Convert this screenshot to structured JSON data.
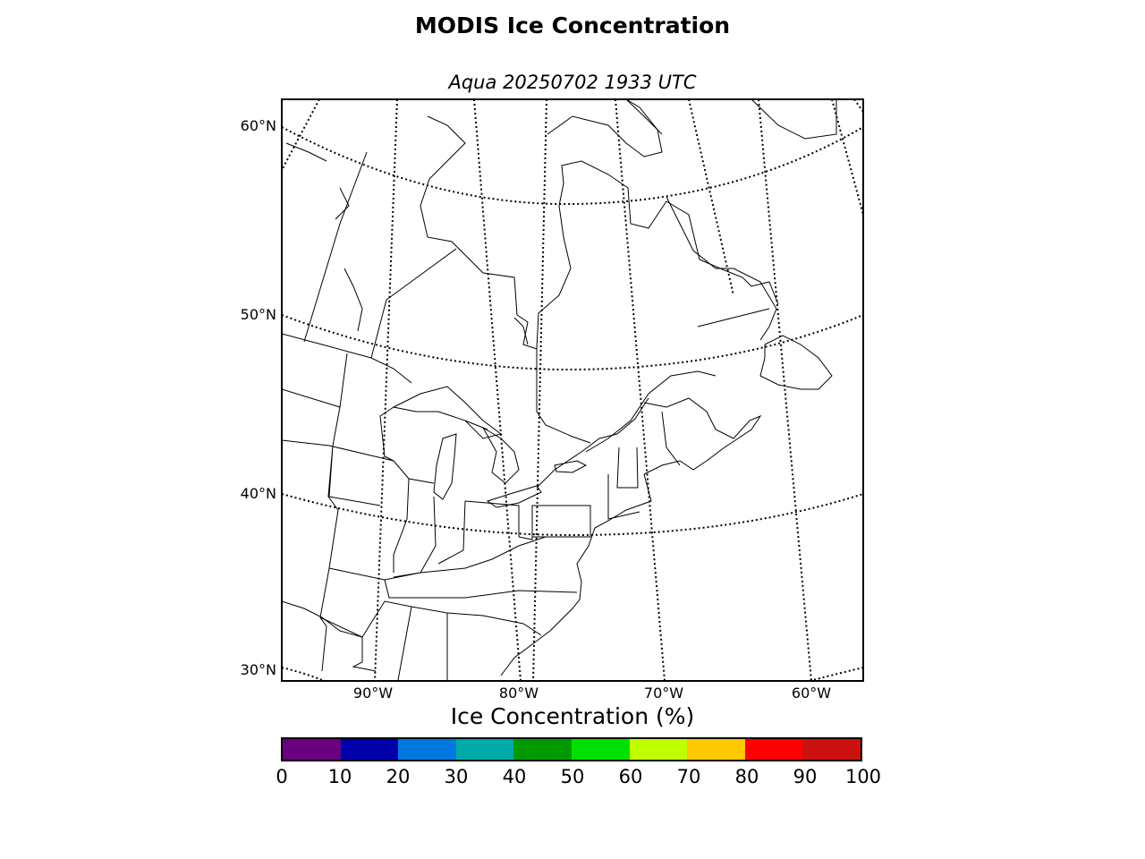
{
  "figure": {
    "title": "MODIS Ice Concentration",
    "subtitle": "Aqua 20250702 1933 UTC"
  },
  "map": {
    "lat_labels": [
      "60°N",
      "50°N",
      "40°N",
      "30°N"
    ],
    "lon_labels": [
      "90°W",
      "80°W",
      "70°W",
      "60°W"
    ],
    "graticule": "dotted",
    "region": "Eastern North America / Great Lakes / Canada"
  },
  "colorbar": {
    "label": "Ice Concentration (%)",
    "ticks": [
      "0",
      "10",
      "20",
      "30",
      "40",
      "50",
      "60",
      "70",
      "80",
      "90",
      "100"
    ],
    "colors": [
      "#6a007f",
      "#0000aa",
      "#0078e0",
      "#00aaaa",
      "#009a00",
      "#00e000",
      "#bfff00",
      "#ffc800",
      "#ff0000",
      "#cc1010"
    ]
  }
}
